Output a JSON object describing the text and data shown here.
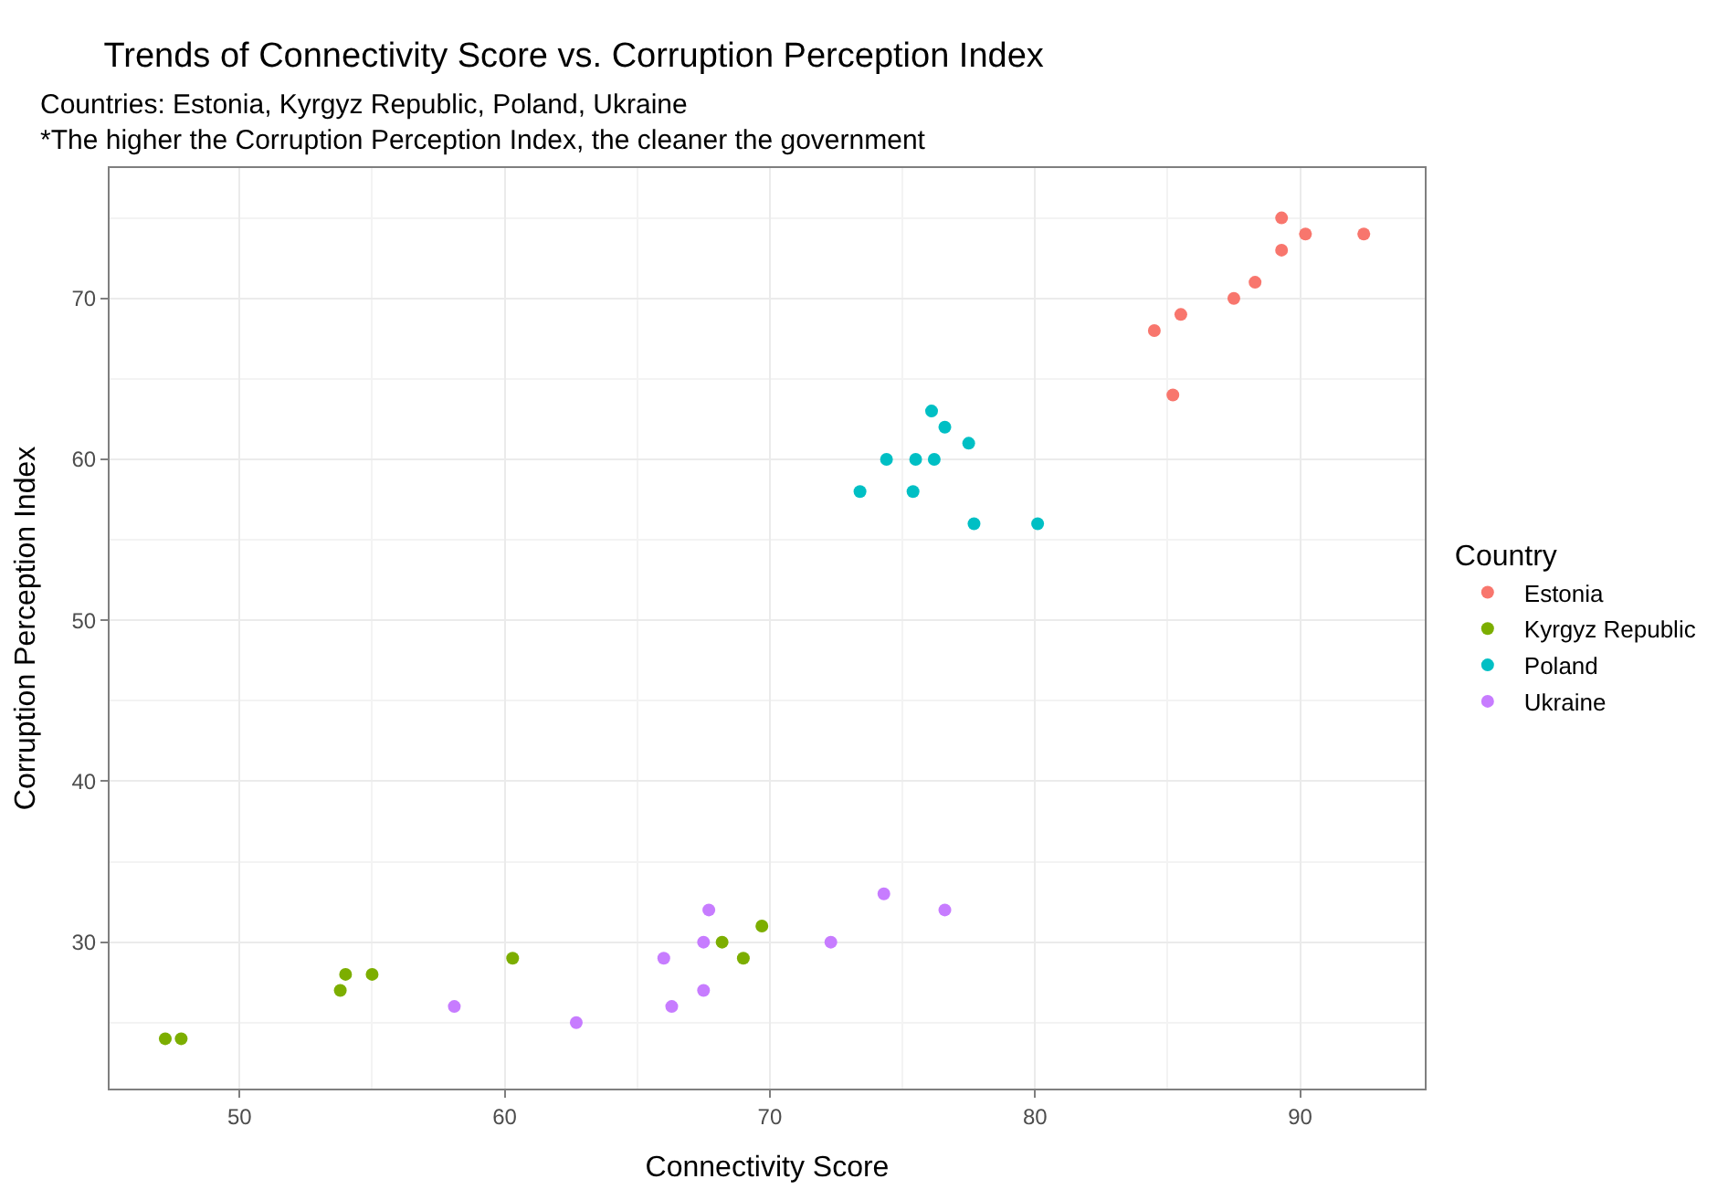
{
  "chart_data": {
    "type": "scatter",
    "title": "Trends of Connectivity Score vs. Corruption Perception Index",
    "subtitle": "Countries: Estonia, Kyrgyz Republic, Poland, Ukraine\n*The higher the Corruption Perception Index, the cleaner the government",
    "xlabel": "Connectivity Score",
    "ylabel": "Corruption Perception Index",
    "legend_title": "Country",
    "series": [
      {
        "name": "Estonia",
        "color": "#f8766d",
        "x": [
          89.3,
          90.2,
          92.4,
          89.3,
          88.3,
          87.5,
          85.5,
          84.5,
          85.2
        ],
        "values": [
          75,
          74,
          74,
          73,
          71,
          70,
          69,
          68,
          64
        ]
      },
      {
        "name": "Kyrgyz Republic",
        "color": "#7cae00",
        "x": [
          47.2,
          47.8,
          53.8,
          54.0,
          55.0,
          60.3,
          68.2,
          69.0,
          69.7
        ],
        "values": [
          24,
          24,
          27,
          28,
          28,
          29,
          30,
          29,
          31
        ]
      },
      {
        "name": "Poland",
        "color": "#00bfc4",
        "x": [
          76.1,
          76.6,
          77.5,
          74.4,
          75.5,
          76.2,
          73.4,
          75.4,
          77.7,
          80.1
        ],
        "values": [
          63,
          62,
          61,
          60,
          60,
          60,
          58,
          58,
          56,
          56
        ]
      },
      {
        "name": "Ukraine",
        "color": "#c77cff",
        "x": [
          58.1,
          62.7,
          66.0,
          66.3,
          67.5,
          67.5,
          67.7,
          72.3,
          74.3,
          76.6
        ],
        "values": [
          26,
          25,
          29,
          26,
          30,
          27,
          32,
          30,
          33,
          32
        ]
      }
    ],
    "xlim": [
      45.1,
      94.7
    ],
    "ylim": [
      20.9,
      78.1
    ],
    "xticks": [
      50,
      60,
      70,
      80,
      90
    ],
    "yticks": [
      30,
      40,
      50,
      60,
      70
    ],
    "grid": true,
    "legend": "right",
    "marker": "circle"
  }
}
